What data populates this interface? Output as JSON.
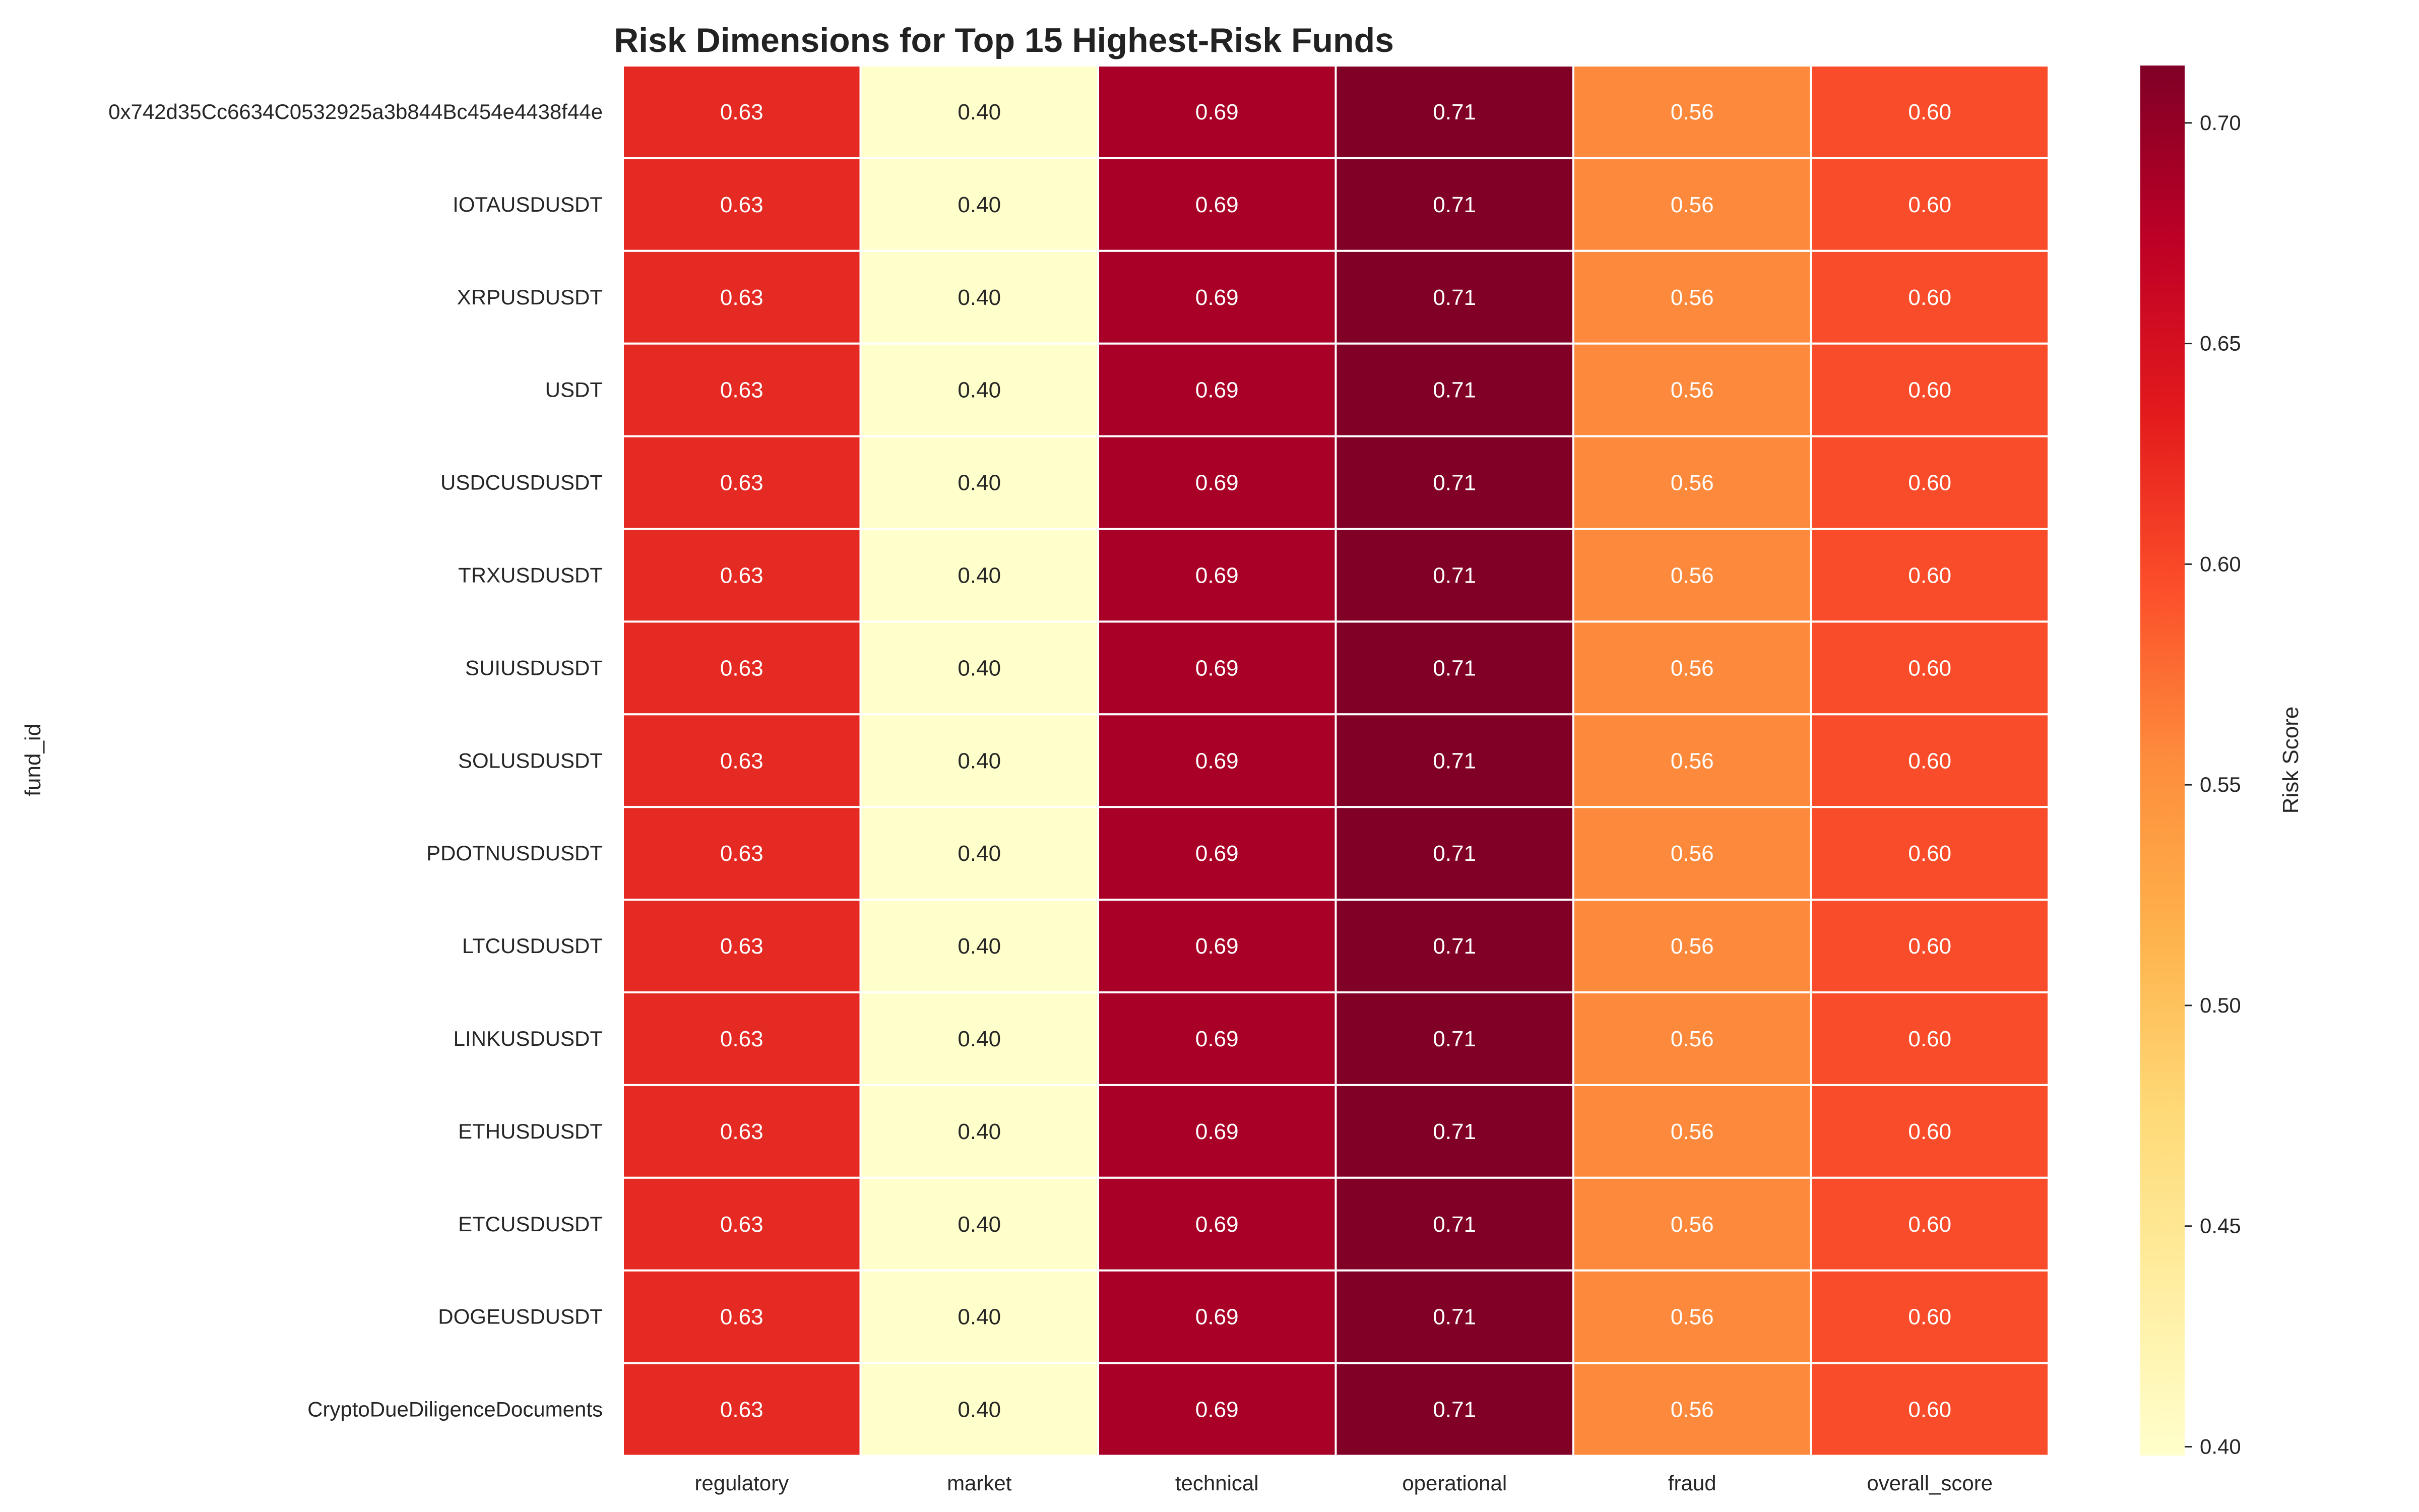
{
  "chart_data": {
    "type": "heatmap",
    "title": "Risk Dimensions for Top 15 Highest-Risk Funds",
    "xlabel": "",
    "ylabel": "fund_id",
    "columns": [
      "regulatory",
      "market",
      "technical",
      "operational",
      "fraud",
      "overall_score"
    ],
    "rows": [
      "0x742d35Cc6634C0532925a3b844Bc454e4438f44e",
      "IOTAUSDUSDT",
      "XRPUSDUSDT",
      "USDT",
      "USDCUSDUSDT",
      "TRXUSDUSDT",
      "SUIUSDUSDT",
      "SOLUSDUSDT",
      "PDOTNUSDUSDT",
      "LTCUSDUSDT",
      "LINKUSDUSDT",
      "ETHUSDUSDT",
      "ETCUSDUSDT",
      "DOGEUSDUSDT",
      "CryptoDueDiligenceDocuments"
    ],
    "row_values": [
      0.63,
      0.4,
      0.69,
      0.71,
      0.56,
      0.6
    ],
    "colormap": "YlOrRd",
    "colorbar": {
      "label": "Risk Score",
      "min": 0.398,
      "max": 0.713,
      "ticks": [
        0.4,
        0.45,
        0.5,
        0.55,
        0.6,
        0.65,
        0.7
      ]
    },
    "cell_colors": {
      "regulatory": "#e42a22",
      "market": "#ffffcc",
      "technical": "#a80026",
      "operational": "#800026",
      "fraud": "#fd8a3c",
      "overall_score": "#f94c2a"
    },
    "annotation_color": "#ffffff",
    "annotation_color_light_cell": "#262626"
  }
}
